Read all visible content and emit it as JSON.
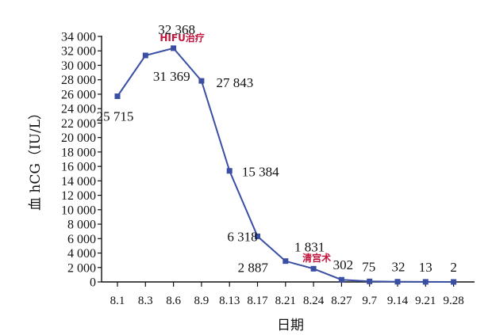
{
  "chart_data": {
    "type": "line",
    "title": "",
    "xlabel": "日期",
    "ylabel": "血 hCG（IU/L）",
    "categories": [
      "8.1",
      "8.3",
      "8.6",
      "8.9",
      "8.13",
      "8.17",
      "8.21",
      "8.24",
      "8.27",
      "9.7",
      "9.14",
      "9.21",
      "9.28"
    ],
    "series": [
      {
        "values": [
          25715,
          31369,
          32368,
          27843,
          15384,
          6318,
          2887,
          1831,
          302,
          75,
          32,
          13,
          2
        ],
        "labels": [
          "25 715",
          "31 369",
          "32 368",
          "27 843",
          "15 384",
          "6 318",
          "2 887",
          "1 831",
          "302",
          "75",
          "32",
          "13",
          "2"
        ],
        "color": "#3a4fa3"
      }
    ],
    "ylim": [
      0,
      34000
    ],
    "yticks": [
      0,
      2000,
      4000,
      6000,
      8000,
      10000,
      12000,
      14000,
      16000,
      18000,
      20000,
      22000,
      24000,
      26000,
      28000,
      30000,
      32000,
      34000
    ],
    "ytick_labels": [
      "0",
      "2 000",
      "4 000",
      "6 000",
      "8 000",
      "10 000",
      "12 000",
      "14 000",
      "16 000",
      "18 000",
      "20 000",
      "22 000",
      "24 000",
      "26 000",
      "28 000",
      "30 000",
      "32 000",
      "34 000"
    ],
    "grid": false,
    "annotations": [
      {
        "category": "8.6",
        "text": "HIFU治疗"
      },
      {
        "category": "8.24",
        "text": "清宫术"
      }
    ]
  }
}
